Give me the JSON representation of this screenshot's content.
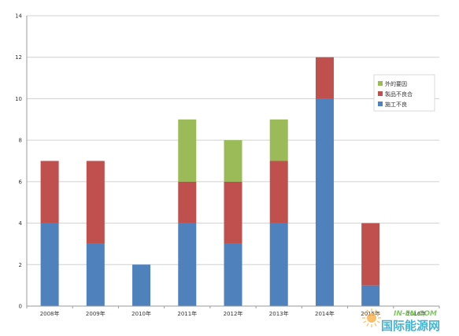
{
  "chart_data": {
    "type": "bar",
    "stacked": true,
    "categories": [
      "2008年",
      "2009年",
      "2010年",
      "2011年",
      "2012年",
      "2013年",
      "2014年",
      "2015年",
      "2016年"
    ],
    "series": [
      {
        "name": "施工不良",
        "color": "#4f81bd",
        "values": [
          4,
          3,
          2,
          4,
          3,
          4,
          10,
          1,
          0
        ]
      },
      {
        "name": "製品不良合",
        "color": "#c0504d",
        "values": [
          3,
          4,
          0,
          2,
          3,
          3,
          2,
          3,
          0
        ]
      },
      {
        "name": "外的要因",
        "color": "#9bbb59",
        "values": [
          0,
          0,
          0,
          3,
          2,
          2,
          0,
          0,
          0
        ]
      }
    ],
    "title": "",
    "xlabel": "",
    "ylabel": "",
    "ylim": [
      0,
      14
    ],
    "yticks": [
      0,
      2,
      4,
      6,
      8,
      10,
      12,
      14
    ],
    "grid": true,
    "legend_placement": "right"
  },
  "watermark": {
    "text": "国际能源网",
    "subtext": "IN-EN.COM"
  }
}
